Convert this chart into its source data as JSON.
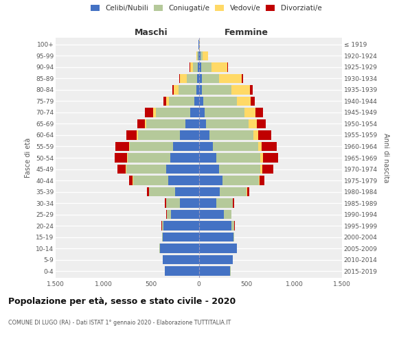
{
  "age_groups": [
    "0-4",
    "5-9",
    "10-14",
    "15-19",
    "20-24",
    "25-29",
    "30-34",
    "35-39",
    "40-44",
    "45-49",
    "50-54",
    "55-59",
    "60-64",
    "65-69",
    "70-74",
    "75-79",
    "80-84",
    "85-89",
    "90-94",
    "95-99",
    "100+"
  ],
  "birth_years": [
    "2015-2019",
    "2010-2014",
    "2005-2009",
    "2000-2004",
    "1995-1999",
    "1990-1994",
    "1985-1989",
    "1980-1984",
    "1975-1979",
    "1970-1974",
    "1965-1969",
    "1960-1964",
    "1955-1959",
    "1950-1954",
    "1945-1949",
    "1940-1944",
    "1935-1939",
    "1930-1934",
    "1925-1929",
    "1920-1924",
    "≤ 1919"
  ],
  "male_celibe": [
    355,
    375,
    410,
    380,
    370,
    290,
    200,
    250,
    320,
    340,
    300,
    270,
    200,
    140,
    90,
    50,
    25,
    18,
    8,
    5,
    2
  ],
  "male_coniugato": [
    1,
    1,
    2,
    5,
    18,
    45,
    140,
    270,
    370,
    420,
    445,
    455,
    440,
    410,
    360,
    260,
    190,
    110,
    50,
    12,
    2
  ],
  "male_vedovo": [
    0,
    0,
    0,
    0,
    0,
    1,
    1,
    2,
    4,
    6,
    8,
    8,
    12,
    18,
    28,
    32,
    45,
    70,
    35,
    6,
    1
  ],
  "male_divorziato": [
    0,
    0,
    0,
    1,
    2,
    4,
    12,
    18,
    38,
    85,
    125,
    140,
    110,
    75,
    85,
    28,
    18,
    6,
    4,
    1,
    0
  ],
  "female_nubile": [
    330,
    355,
    400,
    360,
    345,
    265,
    185,
    220,
    245,
    210,
    180,
    150,
    110,
    75,
    60,
    45,
    35,
    30,
    25,
    18,
    3
  ],
  "female_coniugata": [
    1,
    1,
    2,
    7,
    28,
    75,
    170,
    280,
    385,
    435,
    465,
    470,
    460,
    445,
    415,
    355,
    310,
    185,
    110,
    25,
    2
  ],
  "female_vedova": [
    0,
    0,
    0,
    0,
    1,
    1,
    2,
    4,
    8,
    18,
    25,
    35,
    55,
    85,
    115,
    145,
    190,
    235,
    165,
    55,
    3
  ],
  "female_divorziata": [
    0,
    0,
    0,
    1,
    2,
    4,
    12,
    22,
    48,
    115,
    160,
    160,
    135,
    95,
    85,
    38,
    28,
    12,
    7,
    2,
    0
  ],
  "color_celibe": "#4472c4",
  "color_coniugato": "#b5c99a",
  "color_vedovo": "#ffd966",
  "color_divorziato": "#c00000",
  "legend_labels": [
    "Celibi/Nubili",
    "Coniugati/e",
    "Vedovi/e",
    "Divorziati/e"
  ],
  "title": "Popolazione per età, sesso e stato civile - 2020",
  "subtitle": "COMUNE DI LUGO (RA) - Dati ISTAT 1° gennaio 2020 - Elaborazione TUTTITALIA.IT",
  "label_maschi": "Maschi",
  "label_femmine": "Femmine",
  "label_fascia": "Fasce di età",
  "label_anni": "Anni di nascita",
  "xlim": 1500,
  "bg_color": "#eeeeee",
  "bar_height": 0.82
}
